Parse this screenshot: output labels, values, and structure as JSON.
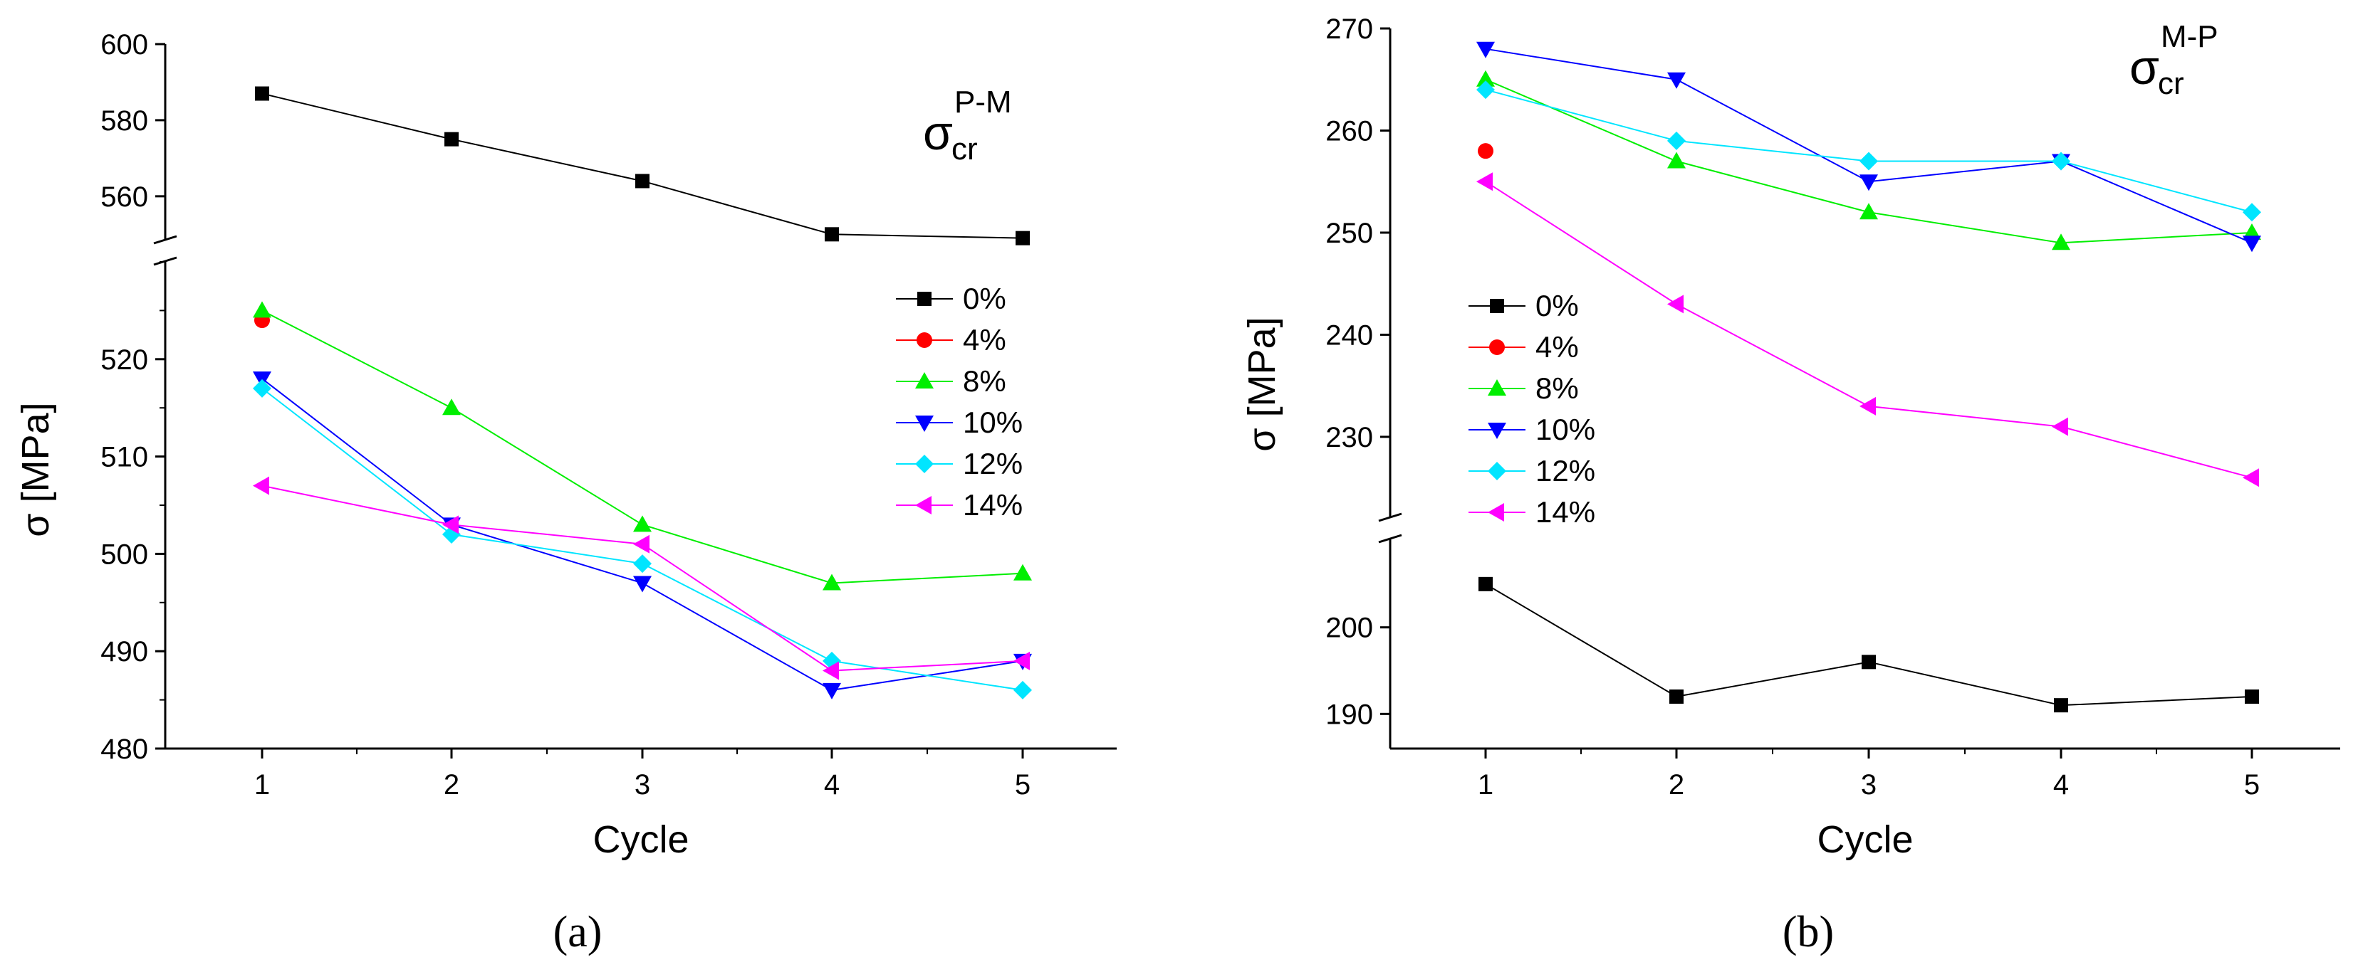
{
  "figure": {
    "panel_labels": [
      "(a)",
      "(b)"
    ]
  },
  "chart_data": [
    {
      "type": "line",
      "panel": "(a)",
      "annotation": {
        "symbol": "σ",
        "superscript": "P-M",
        "subscript": "cr"
      },
      "xlabel": "Cycle",
      "ylabel": "σ [MPa]",
      "x": [
        1,
        2,
        3,
        4,
        5
      ],
      "xticks": [
        "1",
        "2",
        "3",
        "4",
        "5"
      ],
      "xlim": [
        0.5,
        5.5
      ],
      "y_break": true,
      "upper_segment": {
        "ylim": [
          548,
          600
        ],
        "yticks": [
          560,
          580,
          600
        ]
      },
      "lower_segment": {
        "ylim": [
          480,
          530
        ],
        "yticks": [
          480,
          490,
          500,
          510,
          520
        ]
      },
      "legend_position": "right-middle",
      "series": [
        {
          "name": "0%",
          "color": "#000000",
          "marker": "square",
          "segment": "upper",
          "values": [
            587,
            575,
            564,
            550,
            549
          ]
        },
        {
          "name": "4%",
          "color": "#ff0000",
          "marker": "circle",
          "segment": "lower",
          "values": [
            524,
            null,
            null,
            null,
            null
          ]
        },
        {
          "name": "8%",
          "color": "#00ee00",
          "marker": "triangle-up",
          "segment": "lower",
          "values": [
            525,
            515,
            503,
            497,
            498
          ]
        },
        {
          "name": "10%",
          "color": "#0000ff",
          "marker": "triangle-down",
          "segment": "lower",
          "values": [
            518,
            503,
            497,
            486,
            489
          ]
        },
        {
          "name": "12%",
          "color": "#00e5ff",
          "marker": "diamond",
          "segment": "lower",
          "values": [
            517,
            502,
            499,
            489,
            486
          ]
        },
        {
          "name": "14%",
          "color": "#ff00ff",
          "marker": "triangle-left",
          "segment": "lower",
          "values": [
            507,
            503,
            501,
            488,
            489
          ]
        }
      ]
    },
    {
      "type": "line",
      "panel": "(b)",
      "annotation": {
        "symbol": "σ",
        "superscript": "M-P",
        "subscript": "cr"
      },
      "xlabel": "Cycle",
      "ylabel": "σ [MPa]",
      "x": [
        1,
        2,
        3,
        4,
        5
      ],
      "xticks": [
        "1",
        "2",
        "3",
        "4",
        "5"
      ],
      "xlim": [
        0.5,
        5.5
      ],
      "y_break": true,
      "upper_segment": {
        "ylim": [
          224,
          270
        ],
        "yticks": [
          230,
          240,
          250,
          260,
          270
        ]
      },
      "lower_segment": {
        "ylim": [
          186,
          210
        ],
        "yticks": [
          190,
          200
        ]
      },
      "legend_position": "left-middle",
      "series": [
        {
          "name": "0%",
          "color": "#000000",
          "marker": "square",
          "segment": "lower",
          "values": [
            205,
            192,
            196,
            191,
            192
          ]
        },
        {
          "name": "4%",
          "color": "#ff0000",
          "marker": "circle",
          "segment": "upper",
          "values": [
            258,
            null,
            null,
            null,
            null
          ]
        },
        {
          "name": "8%",
          "color": "#00ee00",
          "marker": "triangle-up",
          "segment": "upper",
          "values": [
            265,
            257,
            252,
            249,
            250
          ]
        },
        {
          "name": "10%",
          "color": "#0000ff",
          "marker": "triangle-down",
          "segment": "upper",
          "values": [
            268,
            265,
            255,
            257,
            249
          ]
        },
        {
          "name": "12%",
          "color": "#00e5ff",
          "marker": "diamond",
          "segment": "upper",
          "values": [
            264,
            259,
            257,
            257,
            252
          ]
        },
        {
          "name": "14%",
          "color": "#ff00ff",
          "marker": "triangle-left",
          "segment": "upper",
          "values": [
            255,
            243,
            233,
            231,
            226
          ]
        }
      ]
    }
  ]
}
